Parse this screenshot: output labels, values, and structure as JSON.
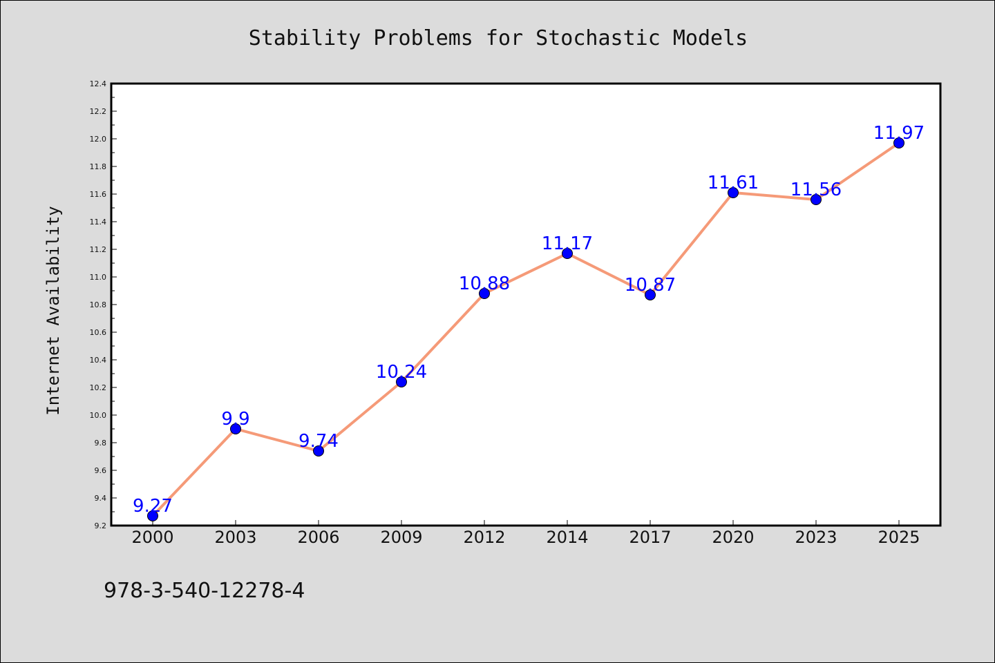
{
  "chart_data": {
    "type": "line",
    "title": "Stability Problems for Stochastic Models",
    "xlabel": "",
    "ylabel": "Internet Availability",
    "categories": [
      "2000",
      "2003",
      "2006",
      "2009",
      "2012",
      "2014",
      "2017",
      "2020",
      "2023",
      "2025"
    ],
    "series": [
      {
        "values": [
          9.27,
          9.9,
          9.74,
          10.24,
          10.88,
          11.17,
          10.87,
          11.61,
          11.56,
          11.97
        ],
        "labels": [
          "9.27",
          "9.9",
          "9.74",
          "10.24",
          "10.88",
          "11.17",
          "10.87",
          "11.61",
          "11.56",
          "11.97"
        ],
        "line_color": "#f59a78",
        "marker_color": "#0000ff"
      }
    ],
    "ylim": [
      9.2,
      12.4
    ],
    "yticks": [
      "9.2",
      "9.4",
      "9.6",
      "9.8",
      "10.0",
      "10.2",
      "10.4",
      "10.6",
      "10.8",
      "11.0",
      "11.2",
      "11.4",
      "11.6",
      "11.8",
      "12.0",
      "12.2",
      "12.4"
    ],
    "grid": false,
    "legend": "none"
  },
  "footnote": "978-3-540-12278-4",
  "colors": {
    "background": "#dcdcdc",
    "plot_area": "#ffffff",
    "line": "#f59a78",
    "markers": "#0000ff",
    "data_labels": "#0000ff"
  }
}
